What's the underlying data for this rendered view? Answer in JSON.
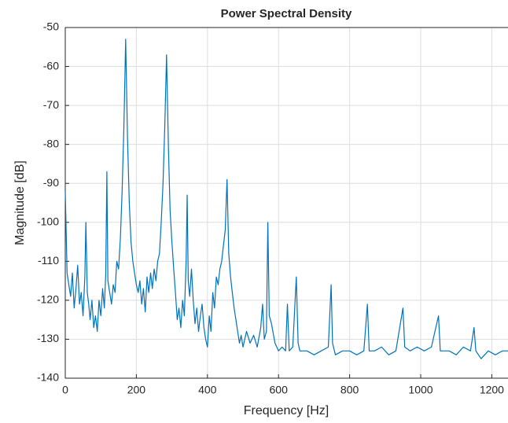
{
  "chart_data": {
    "type": "line",
    "title": "Power Spectral Density",
    "xlabel": "Frequency [Hz]",
    "ylabel": "Magnitude [dB]",
    "x": [
      0,
      5,
      10,
      15,
      20,
      25,
      30,
      35,
      40,
      45,
      50,
      55,
      58,
      62,
      66,
      70,
      75,
      80,
      85,
      90,
      95,
      100,
      105,
      110,
      114,
      117,
      120,
      125,
      130,
      135,
      140,
      145,
      150,
      155,
      160,
      165,
      170,
      175,
      180,
      185,
      190,
      195,
      200,
      205,
      210,
      215,
      220,
      225,
      230,
      235,
      240,
      245,
      250,
      255,
      260,
      265,
      270,
      275,
      280,
      285,
      290,
      295,
      300,
      305,
      310,
      315,
      320,
      325,
      330,
      335,
      340,
      343,
      346,
      350,
      355,
      360,
      365,
      370,
      375,
      380,
      385,
      390,
      395,
      400,
      405,
      410,
      415,
      420,
      425,
      430,
      435,
      440,
      445,
      450,
      455,
      460,
      465,
      470,
      475,
      480,
      485,
      490,
      495,
      500,
      510,
      520,
      530,
      540,
      550,
      555,
      560,
      566,
      570,
      574,
      580,
      590,
      600,
      610,
      620,
      625,
      630,
      640,
      650,
      655,
      660,
      680,
      700,
      720,
      740,
      748,
      752,
      760,
      780,
      800,
      820,
      840,
      850,
      855,
      870,
      890,
      910,
      930,
      950,
      955,
      970,
      990,
      1010,
      1030,
      1050,
      1055,
      1080,
      1100,
      1120,
      1140,
      1150,
      1155,
      1170,
      1190,
      1210,
      1230,
      1250
    ],
    "series": [
      {
        "color": "#0072bd",
        "values": [
          -92,
          -113,
          -116,
          -119,
          -113,
          -122,
          -117,
          -111,
          -121,
          -118,
          -124,
          -114,
          -100,
          -118,
          -121,
          -125,
          -120,
          -127,
          -124,
          -128,
          -120,
          -124,
          -117,
          -122,
          -113,
          -87,
          -115,
          -118,
          -121,
          -116,
          -118,
          -110,
          -112,
          -104,
          -92,
          -75,
          -53,
          -78,
          -95,
          -105,
          -110,
          -113,
          -116,
          -118,
          -115,
          -121,
          -117,
          -123,
          -114,
          -118,
          -113,
          -117,
          -112,
          -115,
          -110,
          -108,
          -100,
          -90,
          -75,
          -57,
          -80,
          -97,
          -105,
          -112,
          -118,
          -125,
          -122,
          -127,
          -120,
          -124,
          -110,
          -93,
          -115,
          -119,
          -112,
          -120,
          -126,
          -122,
          -128,
          -124,
          -121,
          -127,
          -130,
          -132,
          -124,
          -128,
          -118,
          -122,
          -114,
          -116,
          -112,
          -110,
          -106,
          -102,
          -89,
          -108,
          -114,
          -118,
          -122,
          -125,
          -128,
          -131,
          -129,
          -132,
          -128,
          -131,
          -129,
          -132,
          -127,
          -121,
          -130,
          -128,
          -100,
          -124,
          -126,
          -131,
          -133,
          -132,
          -133,
          -121,
          -133,
          -132,
          -114,
          -131,
          -133,
          -133,
          -134,
          -133,
          -132,
          -116,
          -131,
          -134,
          -133,
          -133,
          -134,
          -133,
          -121,
          -133,
          -133,
          -132,
          -134,
          -133,
          -122,
          -132,
          -133,
          -132,
          -133,
          -132,
          -124,
          -133,
          -133,
          -134,
          -132,
          -133,
          -127,
          -133,
          -135,
          -133,
          -134,
          -133,
          -133
        ]
      }
    ],
    "xlim": [
      0,
      1250
    ],
    "ylim": [
      -140,
      -50
    ],
    "xticks": [
      0,
      200,
      400,
      600,
      800,
      1000,
      1200
    ],
    "yticks": [
      -140,
      -130,
      -120,
      -110,
      -100,
      -90,
      -80,
      -70,
      -60,
      -50
    ],
    "grid": true
  }
}
